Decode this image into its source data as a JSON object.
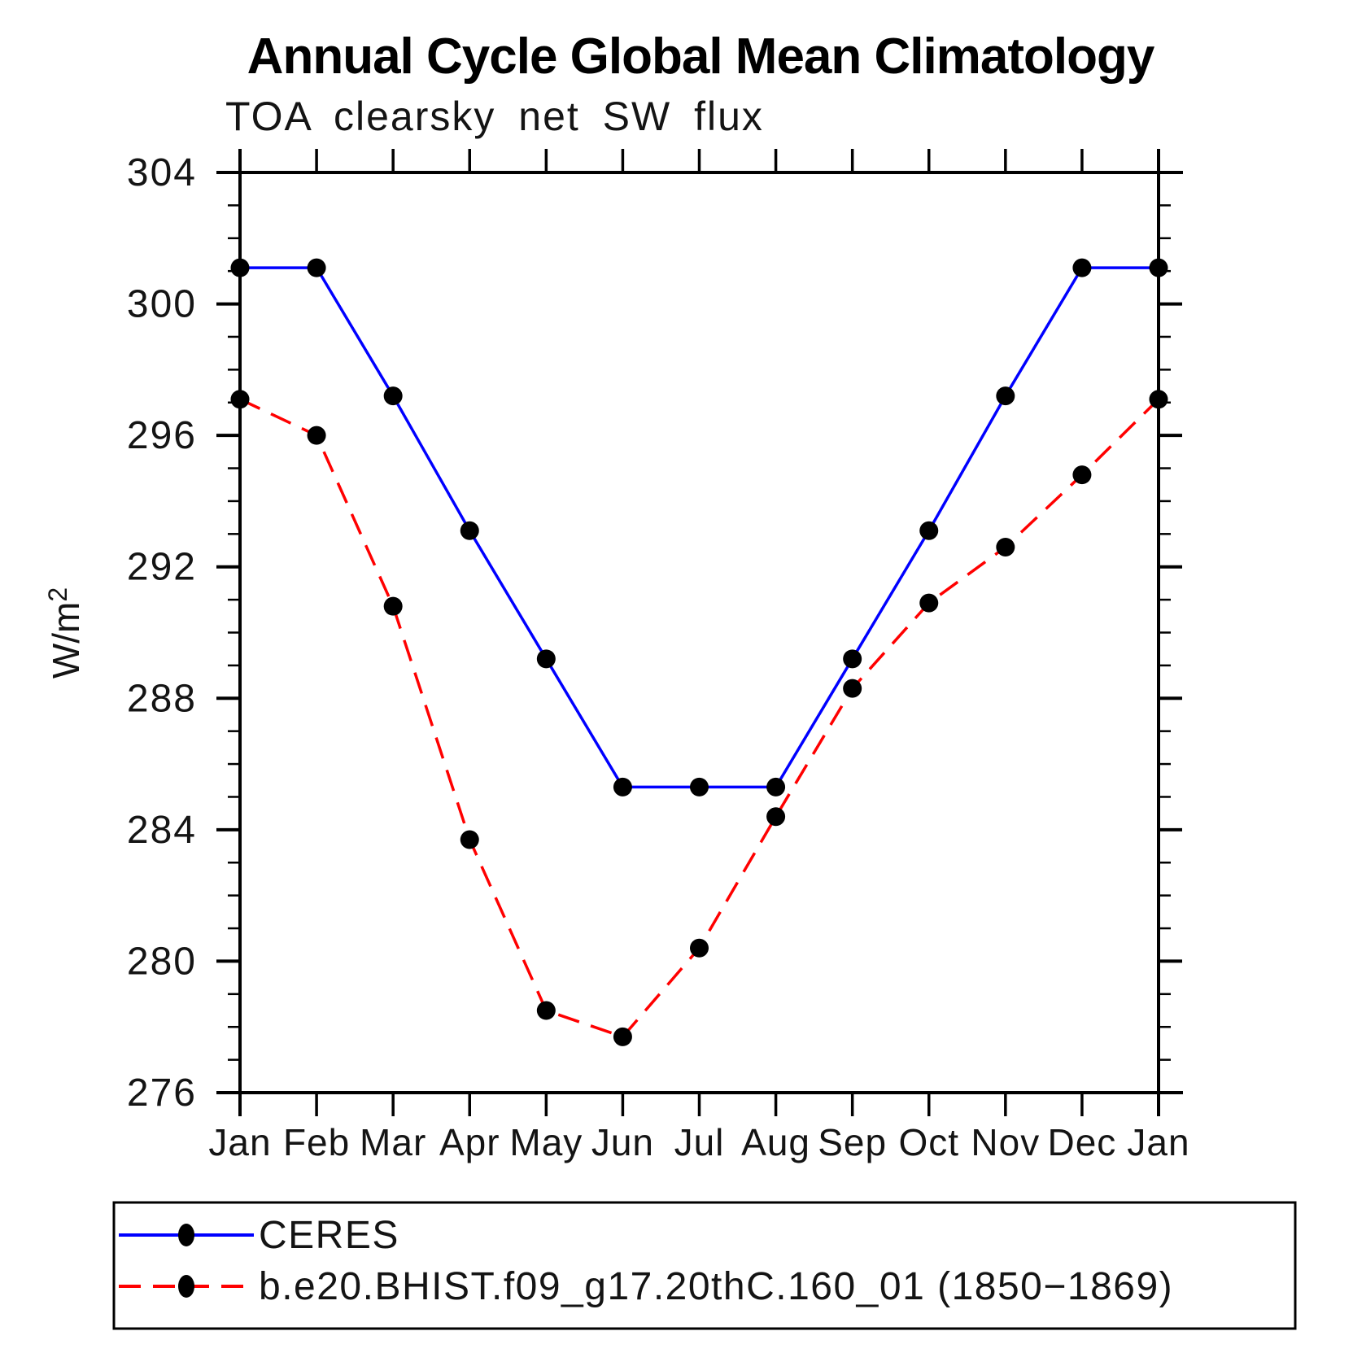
{
  "page": {
    "background": "#ffffff"
  },
  "chart_data": {
    "type": "line",
    "title": "Annual Cycle Global Mean Climatology",
    "subtitle": "TOA clearsky net SW flux",
    "ylabel_base": "W/m",
    "ylabel_sup": "2",
    "ylabel": "W/m²",
    "categories": [
      "Jan",
      "Feb",
      "Mar",
      "Apr",
      "May",
      "Jun",
      "Jul",
      "Aug",
      "Sep",
      "Oct",
      "Nov",
      "Dec",
      "Jan"
    ],
    "ylim": [
      276,
      304
    ],
    "ytick_major_step": 4,
    "ytick_minor_step": 1,
    "ytick_labels": [
      "276",
      "280",
      "284",
      "288",
      "292",
      "296",
      "300",
      "304"
    ],
    "grid": false,
    "legend_position": "bottom",
    "marker_color": "#000000",
    "axis_color": "#000000",
    "series": [
      {
        "name": "CERES",
        "color": "#0000ff",
        "line_style": "solid",
        "values": [
          301.1,
          301.1,
          297.2,
          293.1,
          289.2,
          285.3,
          285.3,
          285.3,
          289.2,
          293.1,
          297.2,
          301.1,
          301.1
        ]
      },
      {
        "name": "b.e20.BHIST.f09_g17.20thC.160_01 (1850−1869)",
        "color": "#ff0000",
        "line_style": "dashed",
        "values": [
          297.1,
          296.0,
          290.8,
          283.7,
          278.5,
          277.7,
          280.4,
          284.4,
          288.3,
          290.9,
          292.6,
          294.8,
          297.1
        ]
      }
    ]
  }
}
